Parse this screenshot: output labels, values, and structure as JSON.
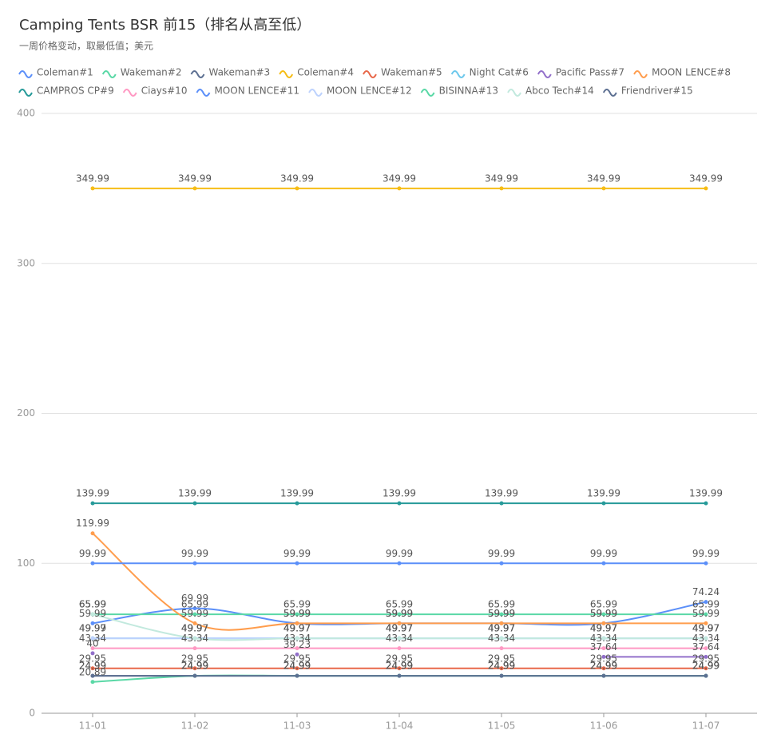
{
  "chart_data": {
    "type": "line",
    "title": "Camping Tents BSR 前15（排名从高至低）",
    "subtitle": "一周价格变动，取最低值；美元",
    "categories": [
      "11-01",
      "11-02",
      "11-03",
      "11-04",
      "11-05",
      "11-06",
      "11-07"
    ],
    "ylim": [
      0,
      400
    ],
    "yticks": [
      0,
      100,
      200,
      300,
      400
    ],
    "grid": true,
    "smooth": true,
    "legend": "top-left",
    "series": [
      {
        "name": "Coleman#1",
        "color": "#5b8ff9",
        "values": [
          59.99,
          69.99,
          59.99,
          59.99,
          59.99,
          59.99,
          74.24
        ]
      },
      {
        "name": "Wakeman#2",
        "color": "#5ad8a6",
        "values": [
          65.99,
          65.99,
          65.99,
          65.99,
          65.99,
          65.99,
          65.99
        ]
      },
      {
        "name": "Wakeman#3",
        "color": "#5d7092",
        "values": [
          24.99,
          24.99,
          24.99,
          24.99,
          24.99,
          24.99,
          24.99
        ]
      },
      {
        "name": "Coleman#4",
        "color": "#f6bd16",
        "values": [
          349.99,
          349.99,
          349.99,
          349.99,
          349.99,
          349.99,
          349.99
        ]
      },
      {
        "name": "Wakeman#5",
        "color": "#e8684a",
        "values": [
          29.95,
          29.95,
          29.95,
          29.95,
          29.95,
          29.95,
          29.95
        ]
      },
      {
        "name": "Night Cat#6",
        "color": "#6dc8ec",
        "values": [
          49.99,
          49.97,
          49.97,
          49.97,
          49.97,
          49.97,
          49.97
        ]
      },
      {
        "name": "Pacific Pass#7",
        "color": "#9270ca",
        "values": [
          40,
          null,
          39.23,
          null,
          null,
          37.64,
          37.64
        ]
      },
      {
        "name": "MOON LENCE#8",
        "color": "#ff9d4d",
        "values": [
          119.99,
          59.99,
          59.99,
          59.99,
          59.99,
          59.99,
          59.99
        ]
      },
      {
        "name": "CAMPROS CP#9",
        "color": "#269a99",
        "values": [
          139.99,
          139.99,
          139.99,
          139.99,
          139.99,
          139.99,
          139.99
        ]
      },
      {
        "name": "Ciays#10",
        "color": "#ff99c3",
        "values": [
          43.34,
          43.34,
          43.34,
          43.34,
          43.34,
          43.34,
          43.34
        ]
      },
      {
        "name": "MOON LENCE#11",
        "color": "#5b8ff9",
        "values": [
          99.99,
          99.99,
          99.99,
          99.99,
          99.99,
          99.99,
          99.99
        ]
      },
      {
        "name": "MOON LENCE#12",
        "color": "#bdd2fd",
        "values": [
          49.97,
          49.97,
          49.97,
          49.97,
          49.97,
          49.97,
          49.97
        ]
      },
      {
        "name": "BISINNA#13",
        "color": "#5ad8a6",
        "values": [
          20.89,
          24.99,
          24.99,
          24.99,
          24.99,
          24.99,
          24.99
        ]
      },
      {
        "name": "Abco Tech#14",
        "color": "#c2e9de",
        "values": [
          65.99,
          49.97,
          49.97,
          49.97,
          49.97,
          49.97,
          49.97
        ]
      },
      {
        "name": "Friendriver#15",
        "color": "#5d7092",
        "values": [
          24.99,
          24.99,
          24.99,
          24.99,
          24.99,
          24.99,
          24.99
        ]
      }
    ]
  }
}
